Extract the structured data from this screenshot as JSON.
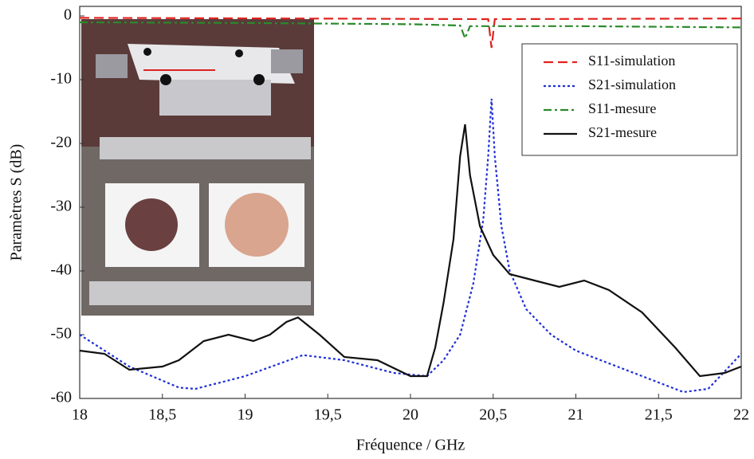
{
  "chart_data": {
    "type": "line",
    "xlabel": "Fréquence / GHz",
    "ylabel": "Paramètres S (dB)",
    "xlim": [
      18,
      22
    ],
    "ylim": [
      -60,
      1.5
    ],
    "xticks": [
      18,
      {
        "value": 18.5,
        "label": "18,5"
      },
      19,
      {
        "value": 19.5,
        "label": "19,5"
      },
      20,
      {
        "value": 20.5,
        "label": "20,5"
      },
      21,
      {
        "value": 21.5,
        "label": "21,5"
      },
      22
    ],
    "yticks": [
      -60,
      -50,
      -40,
      -30,
      -20,
      -10,
      0
    ],
    "grid": false,
    "legend": "upper right",
    "series": [
      {
        "name": "S11-simulation",
        "color": "#e0231e",
        "dash": "dashed",
        "x": [
          18,
          20.47,
          20.49,
          20.51,
          22
        ],
        "values": [
          -0.3,
          -0.5,
          -5,
          -0.5,
          -0.4
        ]
      },
      {
        "name": "S21-simulation",
        "color": "#1f2fd6",
        "dash": "dotted",
        "x": [
          18,
          18.3,
          18.6,
          18.7,
          19,
          19.35,
          19.6,
          19.9,
          20.1,
          20.2,
          20.3,
          20.38,
          20.44,
          20.47,
          20.49,
          20.51,
          20.55,
          20.6,
          20.7,
          20.85,
          21,
          21.3,
          21.5,
          21.65,
          21.8,
          22
        ],
        "values": [
          -50,
          -55,
          -58.3,
          -58.5,
          -56.5,
          -53.2,
          -54,
          -56,
          -56.5,
          -54,
          -50,
          -42,
          -32,
          -22,
          -13,
          -22,
          -33,
          -40,
          -46,
          -50,
          -52.5,
          -55.5,
          -57.5,
          -59,
          -58.5,
          -53
        ]
      },
      {
        "name": "S11-mesure",
        "color": "#2a8a2a",
        "dash": "dashdot",
        "x": [
          18,
          19,
          20,
          20.3,
          20.33,
          20.36,
          21,
          22
        ],
        "values": [
          -1,
          -1.1,
          -1.3,
          -1.5,
          -3.5,
          -1.6,
          -1.6,
          -1.8
        ]
      },
      {
        "name": "S21-mesure",
        "color": "#111111",
        "dash": "solid",
        "x": [
          18,
          18.15,
          18.3,
          18.5,
          18.6,
          18.75,
          18.9,
          19.05,
          19.15,
          19.25,
          19.32,
          19.45,
          19.6,
          19.8,
          20,
          20.1,
          20.15,
          20.2,
          20.26,
          20.3,
          20.33,
          20.36,
          20.42,
          20.5,
          20.6,
          20.75,
          20.9,
          21.05,
          21.2,
          21.4,
          21.6,
          21.75,
          21.9,
          22
        ],
        "values": [
          -52.5,
          -53,
          -55.5,
          -55,
          -54,
          -51,
          -50,
          -51,
          -50,
          -48,
          -47.3,
          -50,
          -53.5,
          -54,
          -56.5,
          -56.5,
          -52,
          -45,
          -35,
          -22,
          -17,
          -25,
          -33,
          -37.5,
          -40.5,
          -41.5,
          -42.5,
          -41.5,
          -43,
          -46.5,
          -52,
          -56.5,
          -56,
          -55
        ]
      }
    ]
  }
}
